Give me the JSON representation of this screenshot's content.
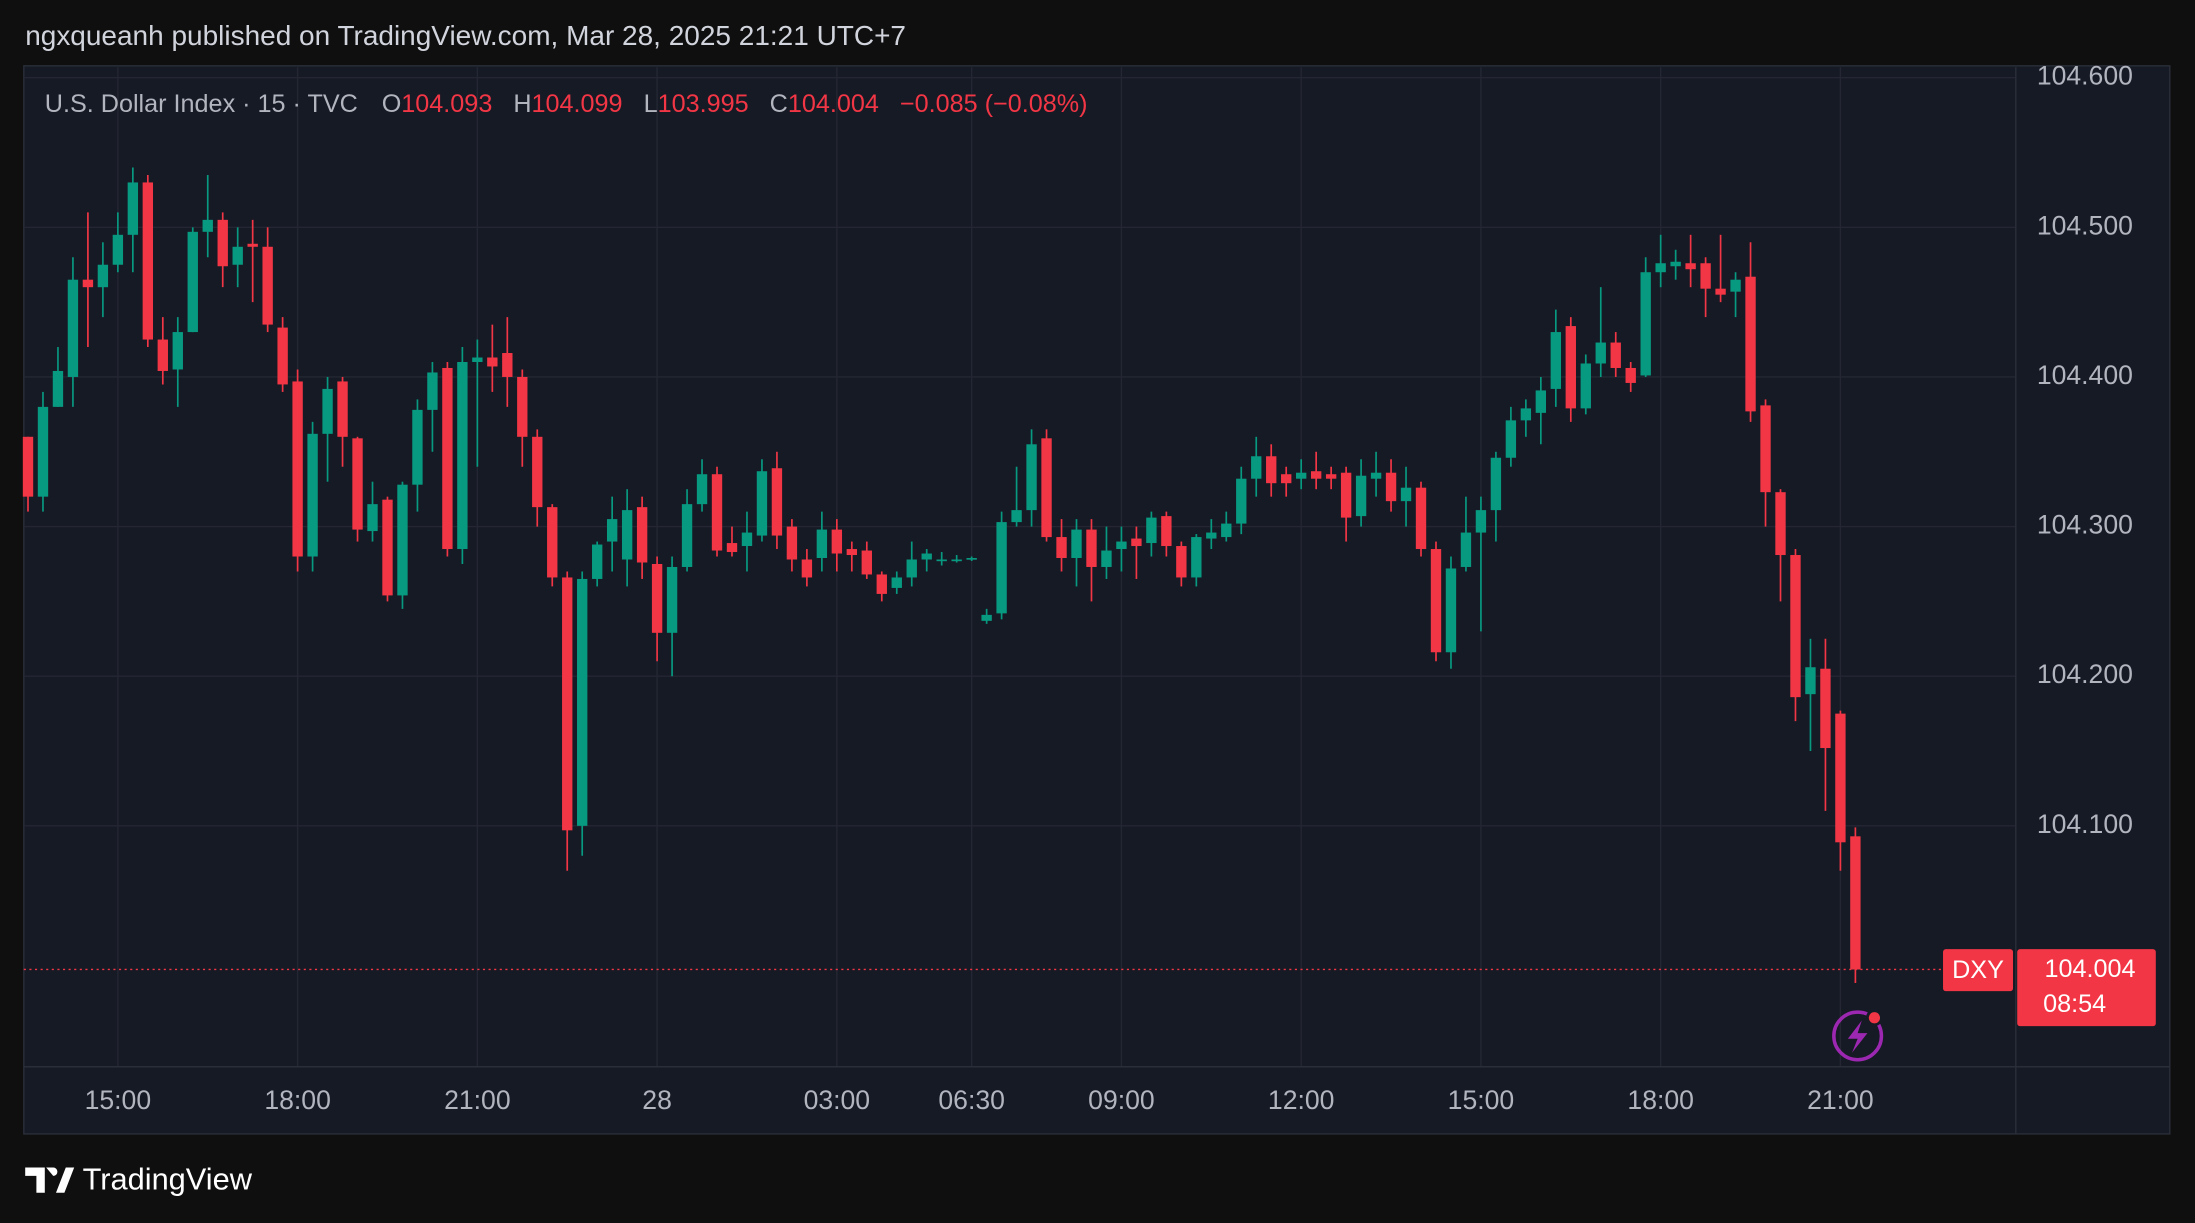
{
  "header": {
    "published": "ngxqueanh published on TradingView.com, Mar 28, 2025 21:21 UTC+7",
    "brand": "TradingView"
  },
  "chart_data": {
    "type": "candlestick",
    "title": "U.S. Dollar Index · 15 · TVC",
    "ohlc_labels": [
      "O",
      "H",
      "L",
      "C"
    ],
    "change": "−0.085 (−0.08%)",
    "symbol": "DXY",
    "countdown": "08:54",
    "up_color": "#089981",
    "down_color": "#f23645",
    "grid": true,
    "categories": [
      null,
      null,
      null,
      null,
      null,
      null,
      "15:00",
      null,
      null,
      null,
      null,
      null,
      null,
      null,
      null,
      null,
      null,
      null,
      "18:00",
      null,
      null,
      null,
      null,
      null,
      null,
      null,
      null,
      null,
      null,
      null,
      "21:00",
      null,
      null,
      null,
      null,
      null,
      null,
      null,
      null,
      null,
      null,
      null,
      "28",
      null,
      null,
      null,
      null,
      null,
      null,
      null,
      null,
      null,
      null,
      null,
      "03:00",
      null,
      null,
      null,
      null,
      null,
      null,
      null,
      null,
      "06:30",
      null,
      null,
      null,
      null,
      null,
      null,
      null,
      null,
      null,
      "09:00",
      null,
      null,
      null,
      null,
      null,
      null,
      null,
      null,
      null,
      null,
      null,
      "12:00",
      null,
      null,
      null,
      null,
      null,
      null,
      null,
      null,
      null,
      null,
      null,
      "15:00",
      null,
      null,
      null,
      null,
      null,
      null,
      null,
      null,
      null,
      null,
      null,
      "18:00",
      null,
      null,
      null,
      null,
      null,
      null,
      null,
      null,
      null,
      null,
      null,
      "21:00",
      null
    ],
    "open": [
      104.36,
      104.32,
      104.38,
      104.4,
      104.465,
      104.46,
      104.475,
      104.495,
      104.53,
      104.425,
      104.405,
      104.43,
      104.497,
      104.505,
      104.475,
      104.489,
      104.487,
      104.433,
      104.397,
      104.28,
      104.362,
      104.397,
      104.359,
      104.297,
      104.318,
      104.254,
      104.328,
      104.378,
      104.406,
      104.285,
      104.41,
      104.413,
      104.416,
      104.4,
      104.36,
      104.313,
      104.266,
      104.1,
      104.265,
      104.29,
      104.278,
      104.313,
      104.275,
      104.229,
      104.273,
      104.315,
      104.335,
      104.289,
      104.287,
      104.294,
      104.339,
      104.3,
      104.278,
      104.279,
      104.298,
      104.285,
      104.284,
      104.268,
      104.259,
      104.266,
      104.278,
      104.278,
      104.278,
      104.278,
      104.237,
      104.242,
      104.303,
      104.311,
      104.359,
      104.293,
      104.279,
      104.298,
      104.273,
      104.285,
      104.292,
      104.289,
      104.307,
      104.287,
      104.266,
      104.292,
      104.293,
      104.302,
      104.332,
      104.347,
      104.335,
      104.332,
      104.337,
      104.335,
      104.336,
      104.307,
      104.332,
      104.336,
      104.317,
      104.326,
      104.285,
      104.216,
      104.273,
      104.296,
      104.311,
      104.346,
      104.371,
      104.376,
      104.392,
      104.434,
      104.379,
      104.409,
      104.423,
      104.406,
      104.401,
      104.47,
      104.474,
      104.476,
      104.476,
      104.459,
      104.457,
      104.467,
      104.381,
      104.323,
      104.281,
      104.188,
      104.205,
      104.175,
      104.093
    ],
    "high": [
      104.36,
      104.39,
      104.42,
      104.48,
      104.51,
      104.49,
      104.51,
      104.54,
      104.535,
      104.44,
      104.44,
      104.5,
      104.535,
      104.51,
      104.5,
      104.505,
      104.5,
      104.44,
      104.405,
      104.37,
      104.4,
      104.4,
      104.36,
      104.33,
      104.32,
      104.33,
      104.385,
      104.41,
      104.41,
      104.42,
      104.425,
      104.435,
      104.44,
      104.405,
      104.365,
      104.315,
      104.27,
      104.27,
      104.29,
      104.32,
      104.325,
      104.32,
      104.28,
      104.28,
      104.325,
      104.345,
      104.34,
      104.3,
      104.31,
      104.345,
      104.35,
      104.305,
      104.285,
      104.31,
      104.305,
      104.29,
      104.29,
      104.27,
      104.27,
      104.29,
      104.285,
      104.283,
      104.281,
      104.28,
      104.245,
      104.31,
      104.34,
      104.365,
      104.365,
      104.305,
      104.305,
      104.305,
      104.3,
      104.3,
      104.3,
      104.31,
      104.31,
      104.29,
      104.295,
      104.305,
      104.31,
      104.34,
      104.36,
      104.355,
      104.34,
      104.345,
      104.35,
      104.34,
      104.34,
      104.345,
      104.35,
      104.345,
      104.34,
      104.33,
      104.29,
      104.28,
      104.32,
      104.32,
      104.35,
      104.38,
      104.385,
      104.4,
      104.445,
      104.44,
      104.415,
      104.46,
      104.43,
      104.41,
      104.48,
      104.495,
      104.485,
      104.495,
      104.48,
      104.495,
      104.47,
      104.49,
      104.385,
      104.325,
      104.285,
      104.225,
      104.225,
      104.177,
      104.099
    ],
    "low": [
      104.31,
      104.31,
      104.38,
      104.38,
      104.42,
      104.44,
      104.47,
      104.47,
      104.42,
      104.395,
      104.38,
      104.43,
      104.48,
      104.46,
      104.46,
      104.45,
      104.43,
      104.39,
      104.27,
      104.27,
      104.33,
      104.34,
      104.29,
      104.29,
      104.25,
      104.245,
      104.31,
      104.35,
      104.28,
      104.275,
      104.34,
      104.39,
      104.38,
      104.34,
      104.3,
      104.26,
      104.07,
      104.08,
      104.26,
      104.27,
      104.26,
      104.265,
      104.21,
      104.2,
      104.27,
      104.31,
      104.28,
      104.28,
      104.27,
      104.29,
      104.285,
      104.27,
      104.26,
      104.27,
      104.27,
      104.27,
      104.265,
      104.25,
      104.255,
      104.26,
      104.27,
      104.274,
      104.276,
      104.277,
      104.235,
      104.238,
      104.3,
      104.3,
      104.29,
      104.27,
      104.26,
      104.25,
      104.265,
      104.27,
      104.265,
      104.28,
      104.28,
      104.26,
      104.26,
      104.285,
      104.29,
      104.295,
      104.32,
      104.32,
      104.32,
      104.325,
      104.325,
      104.325,
      104.29,
      104.3,
      104.32,
      104.31,
      104.3,
      104.28,
      104.21,
      104.205,
      104.27,
      104.23,
      104.29,
      104.34,
      104.36,
      104.355,
      104.38,
      104.37,
      104.375,
      104.4,
      104.4,
      104.39,
      104.4,
      104.46,
      104.465,
      104.46,
      104.44,
      104.45,
      104.44,
      104.37,
      104.3,
      104.25,
      104.17,
      104.15,
      104.11,
      104.07,
      103.995
    ],
    "close": [
      104.32,
      104.38,
      104.404,
      104.465,
      104.46,
      104.475,
      104.495,
      104.53,
      104.425,
      104.404,
      104.43,
      104.497,
      104.505,
      104.474,
      104.487,
      104.487,
      104.435,
      104.395,
      104.28,
      104.362,
      104.392,
      104.36,
      104.298,
      104.315,
      104.254,
      104.328,
      104.378,
      104.403,
      104.285,
      104.41,
      104.413,
      104.407,
      104.4,
      104.36,
      104.313,
      104.266,
      104.097,
      104.265,
      104.288,
      104.305,
      104.311,
      104.276,
      104.229,
      104.273,
      104.315,
      104.335,
      104.284,
      104.283,
      104.296,
      104.337,
      104.294,
      104.278,
      104.266,
      104.298,
      104.282,
      104.281,
      104.268,
      104.255,
      104.266,
      104.278,
      104.282,
      104.278,
      104.278,
      104.279,
      104.241,
      104.303,
      104.311,
      104.355,
      104.293,
      104.279,
      104.298,
      104.273,
      104.284,
      104.29,
      104.287,
      104.306,
      104.287,
      104.266,
      104.293,
      104.296,
      104.302,
      104.332,
      104.347,
      104.329,
      104.329,
      104.336,
      104.332,
      104.332,
      104.306,
      104.334,
      104.336,
      104.317,
      104.326,
      104.285,
      104.216,
      104.272,
      104.296,
      104.311,
      104.346,
      104.371,
      104.379,
      104.391,
      104.43,
      104.379,
      104.409,
      104.423,
      104.406,
      104.396,
      104.47,
      104.476,
      104.477,
      104.472,
      104.459,
      104.455,
      104.465,
      104.377,
      104.323,
      104.281,
      104.186,
      104.206,
      104.152,
      104.089,
      104.004
    ],
    "ylim": [
      103.939,
      104.607
    ],
    "yticks": [
      {
        "value": 104.1,
        "label": "104.100"
      },
      {
        "value": 104.2,
        "label": "104.200"
      },
      {
        "value": 104.3,
        "label": "104.300"
      },
      {
        "value": 104.4,
        "label": "104.400"
      },
      {
        "value": 104.5,
        "label": "104.500"
      },
      {
        "value": 104.6,
        "label": "104.600"
      }
    ]
  }
}
